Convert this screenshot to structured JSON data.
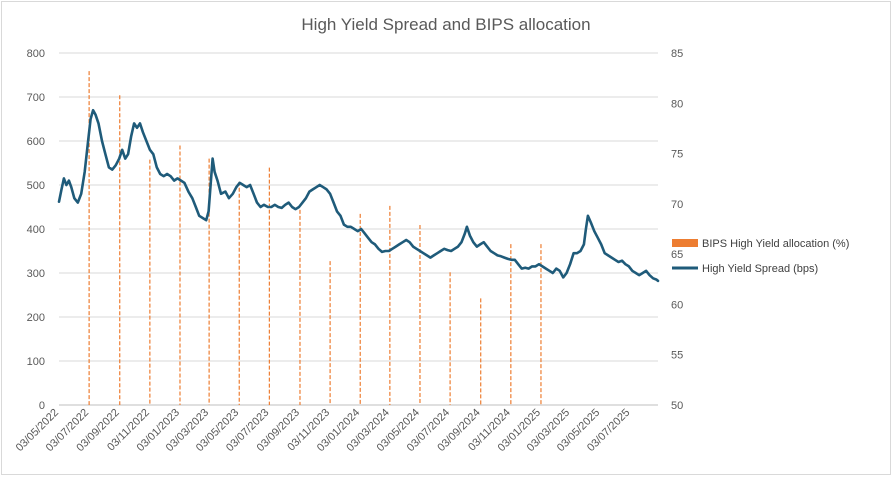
{
  "chart_data": {
    "type": "line",
    "title": "High Yield Spread and BIPS allocation",
    "legend_position": "right",
    "grid": true,
    "left_axis": {
      "ylim": [
        0,
        800
      ],
      "ticks": [
        "0",
        "100",
        "200",
        "300",
        "400",
        "500",
        "600",
        "700",
        "800"
      ]
    },
    "right_axis": {
      "ylim": [
        50,
        85
      ],
      "ticks": [
        "50",
        "55",
        "60",
        "65",
        "70",
        "75",
        "80",
        "85"
      ]
    },
    "x_axis": {
      "range": [
        "2022-05-03",
        "2025-08-28"
      ],
      "tick_dates": [
        "2022-05-03",
        "2022-07-03",
        "2022-09-03",
        "2022-11-03",
        "2023-01-03",
        "2023-03-03",
        "2023-05-03",
        "2023-07-03",
        "2023-09-03",
        "2023-11-03",
        "2024-01-03",
        "2024-03-03",
        "2024-05-03",
        "2024-07-03",
        "2024-09-03",
        "2024-11-03",
        "2025-01-03",
        "2025-03-03",
        "2025-05-03",
        "2025-07-03"
      ],
      "tick_labels": [
        "03/05/2022",
        "03/07/2022",
        "03/09/2022",
        "03/11/2022",
        "03/01/2023",
        "03/03/2023",
        "03/05/2023",
        "03/07/2023",
        "03/09/2023",
        "03/11/2023",
        "03/01/2024",
        "03/03/2024",
        "03/05/2024",
        "03/07/2024",
        "03/09/2024",
        "03/11/2024",
        "03/01/2025",
        "03/03/2025",
        "03/05/2025",
        "03/07/2025"
      ]
    },
    "series": [
      {
        "name": "BIPS High Yield allocation (%)",
        "type": "bar",
        "axis": "right",
        "color": "#ED7D31",
        "points": [
          [
            "2022-07-03",
            83.2
          ],
          [
            "2022-09-03",
            80.8
          ],
          [
            "2022-11-03",
            74.4
          ],
          [
            "2023-01-03",
            75.8
          ],
          [
            "2023-03-03",
            74.5
          ],
          [
            "2023-05-03",
            72.2
          ],
          [
            "2023-07-03",
            73.6
          ],
          [
            "2023-09-03",
            69.4
          ],
          [
            "2023-11-03",
            64.3
          ],
          [
            "2024-01-03",
            69.0
          ],
          [
            "2024-03-03",
            69.8
          ],
          [
            "2024-05-03",
            67.9
          ],
          [
            "2024-07-03",
            63.2
          ],
          [
            "2024-09-03",
            60.6
          ],
          [
            "2024-11-03",
            66.0
          ],
          [
            "2025-01-03",
            66.0
          ]
        ]
      },
      {
        "name": "High Yield Spread (bps)",
        "type": "line",
        "axis": "left",
        "color": "#1F5B7A",
        "points": [
          [
            "2022-05-03",
            462
          ],
          [
            "2022-05-08",
            490
          ],
          [
            "2022-05-13",
            515
          ],
          [
            "2022-05-18",
            500
          ],
          [
            "2022-05-23",
            510
          ],
          [
            "2022-05-28",
            495
          ],
          [
            "2022-06-03",
            470
          ],
          [
            "2022-06-10",
            460
          ],
          [
            "2022-06-17",
            480
          ],
          [
            "2022-06-24",
            530
          ],
          [
            "2022-07-01",
            600
          ],
          [
            "2022-07-06",
            650
          ],
          [
            "2022-07-11",
            670
          ],
          [
            "2022-07-16",
            660
          ],
          [
            "2022-07-22",
            640
          ],
          [
            "2022-07-29",
            600
          ],
          [
            "2022-08-05",
            570
          ],
          [
            "2022-08-12",
            540
          ],
          [
            "2022-08-19",
            535
          ],
          [
            "2022-08-26",
            545
          ],
          [
            "2022-09-02",
            560
          ],
          [
            "2022-09-08",
            580
          ],
          [
            "2022-09-14",
            560
          ],
          [
            "2022-09-20",
            570
          ],
          [
            "2022-09-26",
            610
          ],
          [
            "2022-10-02",
            640
          ],
          [
            "2022-10-08",
            630
          ],
          [
            "2022-10-14",
            640
          ],
          [
            "2022-10-20",
            620
          ],
          [
            "2022-10-27",
            600
          ],
          [
            "2022-11-03",
            580
          ],
          [
            "2022-11-10",
            570
          ],
          [
            "2022-11-17",
            540
          ],
          [
            "2022-11-24",
            525
          ],
          [
            "2022-12-01",
            520
          ],
          [
            "2022-12-08",
            525
          ],
          [
            "2022-12-15",
            520
          ],
          [
            "2022-12-22",
            510
          ],
          [
            "2022-12-29",
            515
          ],
          [
            "2023-01-05",
            510
          ],
          [
            "2023-01-12",
            505
          ],
          [
            "2023-01-20",
            485
          ],
          [
            "2023-01-28",
            470
          ],
          [
            "2023-02-04",
            450
          ],
          [
            "2023-02-11",
            430
          ],
          [
            "2023-02-18",
            425
          ],
          [
            "2023-02-25",
            420
          ],
          [
            "2023-03-02",
            440
          ],
          [
            "2023-03-06",
            500
          ],
          [
            "2023-03-10",
            560
          ],
          [
            "2023-03-14",
            530
          ],
          [
            "2023-03-20",
            510
          ],
          [
            "2023-03-27",
            480
          ],
          [
            "2023-04-05",
            485
          ],
          [
            "2023-04-12",
            470
          ],
          [
            "2023-04-20",
            480
          ],
          [
            "2023-04-27",
            495
          ],
          [
            "2023-05-04",
            505
          ],
          [
            "2023-05-11",
            500
          ],
          [
            "2023-05-18",
            495
          ],
          [
            "2023-05-25",
            500
          ],
          [
            "2023-06-01",
            480
          ],
          [
            "2023-06-08",
            460
          ],
          [
            "2023-06-15",
            450
          ],
          [
            "2023-06-22",
            455
          ],
          [
            "2023-06-30",
            450
          ],
          [
            "2023-07-07",
            450
          ],
          [
            "2023-07-14",
            455
          ],
          [
            "2023-07-21",
            450
          ],
          [
            "2023-07-28",
            448
          ],
          [
            "2023-08-04",
            455
          ],
          [
            "2023-08-11",
            460
          ],
          [
            "2023-08-18",
            450
          ],
          [
            "2023-08-25",
            445
          ],
          [
            "2023-09-01",
            450
          ],
          [
            "2023-09-08",
            460
          ],
          [
            "2023-09-15",
            470
          ],
          [
            "2023-09-22",
            485
          ],
          [
            "2023-09-29",
            490
          ],
          [
            "2023-10-06",
            495
          ],
          [
            "2023-10-13",
            500
          ],
          [
            "2023-10-20",
            495
          ],
          [
            "2023-10-27",
            490
          ],
          [
            "2023-11-03",
            480
          ],
          [
            "2023-11-10",
            460
          ],
          [
            "2023-11-17",
            440
          ],
          [
            "2023-11-24",
            430
          ],
          [
            "2023-12-01",
            410
          ],
          [
            "2023-12-08",
            405
          ],
          [
            "2023-12-15",
            405
          ],
          [
            "2023-12-22",
            400
          ],
          [
            "2023-12-29",
            395
          ],
          [
            "2024-01-05",
            400
          ],
          [
            "2024-01-12",
            390
          ],
          [
            "2024-01-19",
            380
          ],
          [
            "2024-01-26",
            370
          ],
          [
            "2024-02-02",
            365
          ],
          [
            "2024-02-09",
            355
          ],
          [
            "2024-02-16",
            348
          ],
          [
            "2024-02-23",
            350
          ],
          [
            "2024-03-01",
            350
          ],
          [
            "2024-03-08",
            355
          ],
          [
            "2024-03-15",
            360
          ],
          [
            "2024-03-22",
            365
          ],
          [
            "2024-03-29",
            370
          ],
          [
            "2024-04-05",
            375
          ],
          [
            "2024-04-12",
            370
          ],
          [
            "2024-04-19",
            360
          ],
          [
            "2024-04-26",
            355
          ],
          [
            "2024-05-03",
            350
          ],
          [
            "2024-05-10",
            345
          ],
          [
            "2024-05-17",
            340
          ],
          [
            "2024-05-24",
            335
          ],
          [
            "2024-05-31",
            340
          ],
          [
            "2024-06-07",
            345
          ],
          [
            "2024-06-14",
            350
          ],
          [
            "2024-06-21",
            355
          ],
          [
            "2024-06-28",
            352
          ],
          [
            "2024-07-05",
            350
          ],
          [
            "2024-07-12",
            355
          ],
          [
            "2024-07-19",
            360
          ],
          [
            "2024-07-26",
            370
          ],
          [
            "2024-08-02",
            390
          ],
          [
            "2024-08-06",
            405
          ],
          [
            "2024-08-12",
            385
          ],
          [
            "2024-08-19",
            370
          ],
          [
            "2024-08-26",
            360
          ],
          [
            "2024-09-02",
            365
          ],
          [
            "2024-09-09",
            370
          ],
          [
            "2024-09-16",
            360
          ],
          [
            "2024-09-23",
            350
          ],
          [
            "2024-09-30",
            345
          ],
          [
            "2024-10-07",
            340
          ],
          [
            "2024-10-14",
            338
          ],
          [
            "2024-10-21",
            335
          ],
          [
            "2024-10-28",
            332
          ],
          [
            "2024-11-04",
            330
          ],
          [
            "2024-11-11",
            330
          ],
          [
            "2024-11-18",
            320
          ],
          [
            "2024-11-25",
            310
          ],
          [
            "2024-12-02",
            312
          ],
          [
            "2024-12-09",
            310
          ],
          [
            "2024-12-16",
            315
          ],
          [
            "2024-12-23",
            315
          ],
          [
            "2024-12-30",
            320
          ],
          [
            "2025-01-06",
            315
          ],
          [
            "2025-01-13",
            310
          ],
          [
            "2025-01-20",
            305
          ],
          [
            "2025-01-27",
            300
          ],
          [
            "2025-02-03",
            310
          ],
          [
            "2025-02-10",
            305
          ],
          [
            "2025-02-17",
            290
          ],
          [
            "2025-02-24",
            300
          ],
          [
            "2025-03-03",
            320
          ],
          [
            "2025-03-10",
            345
          ],
          [
            "2025-03-17",
            345
          ],
          [
            "2025-03-24",
            350
          ],
          [
            "2025-03-31",
            365
          ],
          [
            "2025-04-04",
            400
          ],
          [
            "2025-04-08",
            430
          ],
          [
            "2025-04-14",
            415
          ],
          [
            "2025-04-21",
            395
          ],
          [
            "2025-04-28",
            380
          ],
          [
            "2025-05-05",
            365
          ],
          [
            "2025-05-12",
            345
          ],
          [
            "2025-05-19",
            340
          ],
          [
            "2025-05-26",
            335
          ],
          [
            "2025-06-02",
            330
          ],
          [
            "2025-06-09",
            325
          ],
          [
            "2025-06-16",
            328
          ],
          [
            "2025-06-23",
            320
          ],
          [
            "2025-06-30",
            315
          ],
          [
            "2025-07-07",
            305
          ],
          [
            "2025-07-14",
            300
          ],
          [
            "2025-07-21",
            295
          ],
          [
            "2025-07-28",
            300
          ],
          [
            "2025-08-04",
            305
          ],
          [
            "2025-08-11",
            295
          ],
          [
            "2025-08-18",
            288
          ],
          [
            "2025-08-25",
            285
          ],
          [
            "2025-08-28",
            282
          ]
        ]
      }
    ]
  }
}
